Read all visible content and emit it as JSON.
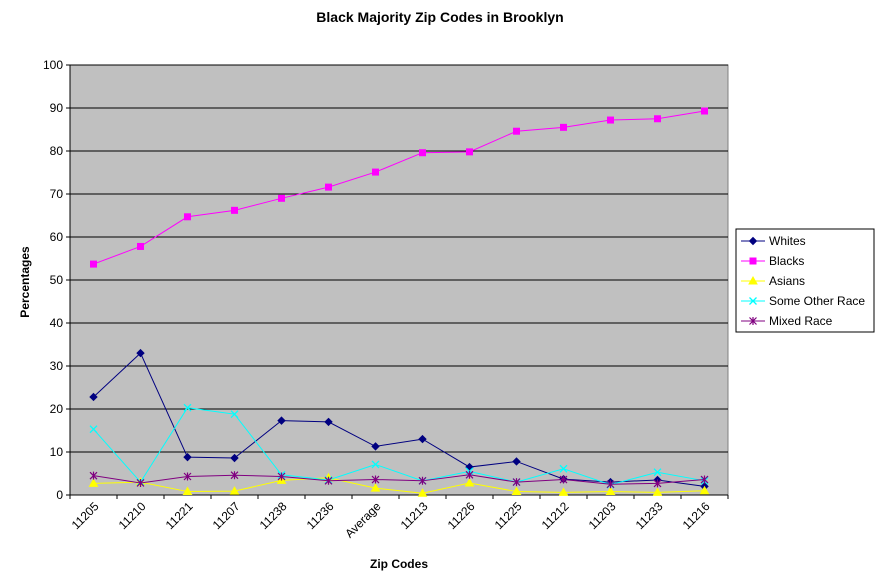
{
  "chart_data": {
    "type": "line",
    "title": "Black Majority Zip Codes in Brooklyn",
    "xlabel": "Zip Codes",
    "ylabel": "Percentages",
    "ylim": [
      0,
      100
    ],
    "yticks": [
      0,
      10,
      20,
      30,
      40,
      50,
      60,
      70,
      80,
      90,
      100
    ],
    "grid": true,
    "legend": "right",
    "categories": [
      "11205",
      "11210",
      "11221",
      "11207",
      "11238",
      "11236",
      "Average",
      "11213",
      "11226",
      "11225",
      "11212",
      "11203",
      "11233",
      "11216"
    ],
    "series": [
      {
        "name": "Whites",
        "color": "#000080",
        "marker": "diamond",
        "values": [
          22.8,
          33.0,
          8.8,
          8.6,
          17.3,
          17.0,
          11.3,
          13.0,
          6.5,
          7.8,
          3.7,
          3.0,
          3.5,
          2.0
        ]
      },
      {
        "name": "Blacks",
        "color": "#FF00FF",
        "marker": "square",
        "values": [
          53.7,
          57.8,
          64.7,
          66.2,
          69.0,
          71.6,
          75.1,
          79.6,
          79.8,
          84.6,
          85.5,
          87.2,
          87.5,
          89.3
        ]
      },
      {
        "name": "Asians",
        "color": "#FFFF00",
        "marker": "triangle",
        "values": [
          2.7,
          3.0,
          0.8,
          0.9,
          3.4,
          4.0,
          1.6,
          0.4,
          2.8,
          0.8,
          0.6,
          0.8,
          0.6,
          1.0
        ]
      },
      {
        "name": "Some Other Race",
        "color": "#00FFFF",
        "marker": "x",
        "values": [
          15.3,
          3.0,
          20.3,
          18.8,
          4.7,
          3.5,
          7.1,
          3.3,
          5.5,
          3.0,
          6.1,
          2.4,
          5.3,
          3.3
        ]
      },
      {
        "name": "Mixed Race",
        "color": "#800080",
        "marker": "star",
        "values": [
          4.5,
          2.8,
          4.3,
          4.6,
          4.3,
          3.3,
          3.6,
          3.3,
          4.7,
          3.0,
          3.6,
          2.5,
          2.7,
          3.6
        ]
      }
    ]
  }
}
